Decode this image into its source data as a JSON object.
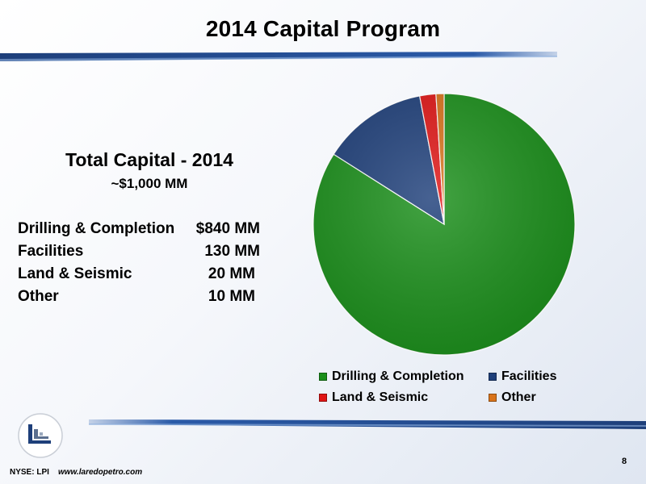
{
  "slide": {
    "title": "2014 Capital Program",
    "page_number": "8",
    "footer_ticker": "NYSE: LPI",
    "footer_url": "www.laredopetro.com"
  },
  "summary": {
    "title": "Total Capital - 2014",
    "subtitle": "~$1,000 MM",
    "rows": [
      {
        "label": "Drilling & Completion",
        "value": "$840 MM"
      },
      {
        "label": "Facilities",
        "value": "130 MM"
      },
      {
        "label": "Land & Seismic",
        "value": "20 MM"
      },
      {
        "label": "Other",
        "value": "10 MM"
      }
    ]
  },
  "colors": {
    "drilling": "#1a8f1a",
    "facilities": "#1e3f7a",
    "land": "#e01515",
    "other": "#d9731a",
    "bar_dark": "#1e3f7a",
    "bar_light": "#b6c7e0"
  },
  "chart_data": {
    "type": "pie",
    "title": "",
    "categories": [
      "Drilling & Completion",
      "Facilities",
      "Land & Seismic",
      "Other"
    ],
    "values": [
      840,
      130,
      20,
      10
    ],
    "unit": "MM",
    "start_angle": "12 o'clock",
    "direction": "clockwise",
    "legend": "bottom",
    "colors": [
      "#1a8f1a",
      "#1e3f7a",
      "#e01515",
      "#d9731a"
    ]
  }
}
